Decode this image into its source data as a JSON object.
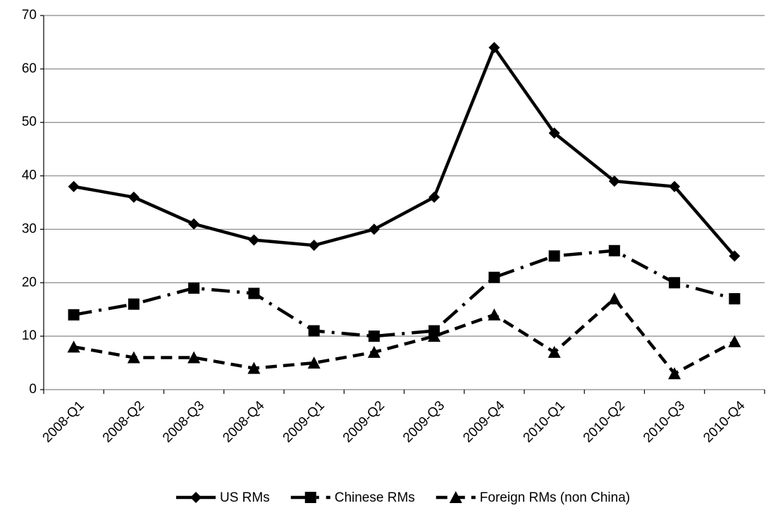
{
  "chart_data": {
    "type": "line",
    "categories": [
      "2008-Q1",
      "2008-Q2",
      "2008-Q3",
      "2008-Q4",
      "2009-Q1",
      "2009-Q2",
      "2009-Q3",
      "2009-Q4",
      "2010-Q1",
      "2010-Q2",
      "2010-Q3",
      "2010-Q4"
    ],
    "series": [
      {
        "name": "US RMs",
        "color": "#000000",
        "marker": "diamond",
        "line_style": "solid",
        "values": [
          38,
          36,
          31,
          28,
          27,
          30,
          36,
          64,
          48,
          39,
          38,
          25
        ]
      },
      {
        "name": "Chinese RMs",
        "color": "#000000",
        "marker": "square",
        "line_style": "dash-dot",
        "values": [
          14,
          16,
          19,
          18,
          11,
          10,
          11,
          21,
          25,
          26,
          20,
          17
        ]
      },
      {
        "name": "Foreign RMs (non China)",
        "color": "#000000",
        "marker": "triangle",
        "line_style": "dash",
        "values": [
          8,
          6,
          6,
          4,
          5,
          7,
          10,
          14,
          7,
          17,
          3,
          9
        ]
      }
    ],
    "ylim": [
      0,
      70
    ],
    "yticks": [
      0,
      10,
      20,
      30,
      40,
      50,
      60,
      70
    ],
    "grid": true,
    "legend": "bottom"
  }
}
